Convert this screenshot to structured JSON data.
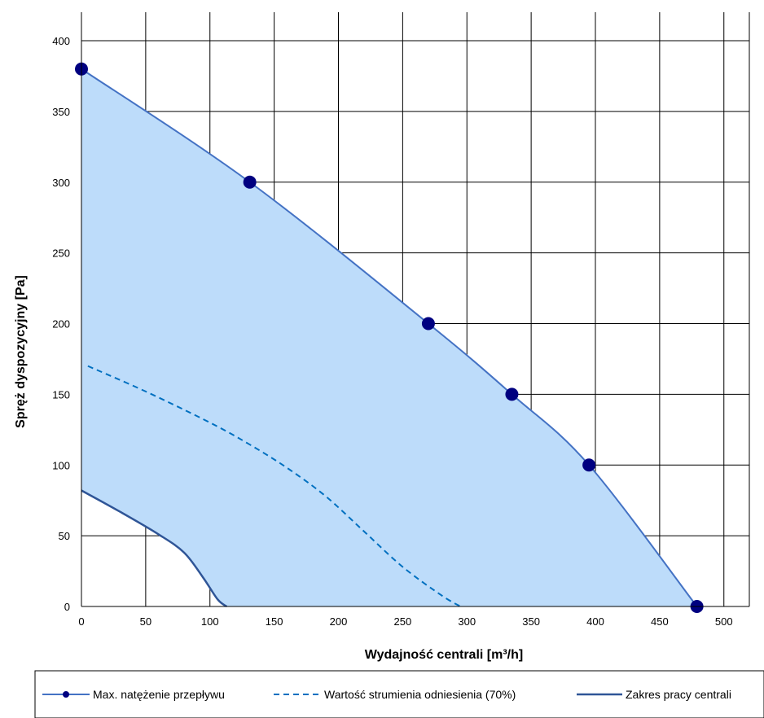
{
  "chart_data": {
    "type": "line",
    "xlabel": "Wydajność centrali [m³/h]",
    "ylabel": "Spręż  dyspozycyjny [Pa]",
    "xlim": [
      0,
      500
    ],
    "ylim": [
      0,
      400
    ],
    "x_ticks": [
      "0",
      "50",
      "100",
      "150",
      "200",
      "250",
      "300",
      "350",
      "400",
      "450",
      "500"
    ],
    "y_ticks": [
      "0",
      "50",
      "100",
      "150",
      "200",
      "250",
      "300",
      "350",
      "400"
    ],
    "grid": true,
    "legend_position": "bottom",
    "series": [
      {
        "name": "Max. natężenie przepływu",
        "style": "solid-markers",
        "color": "#4472c4",
        "marker_color": "#000080",
        "points": [
          [
            0,
            380
          ],
          [
            131,
            300
          ],
          [
            270,
            200
          ],
          [
            335,
            150
          ],
          [
            395,
            100
          ],
          [
            479,
            0
          ]
        ]
      },
      {
        "name": "Wartość strumienia odniesienia (70%)",
        "style": "dashed",
        "color": "#0070c0",
        "points": [
          [
            5,
            170
          ],
          [
            50,
            152
          ],
          [
            100,
            130
          ],
          [
            130,
            115
          ],
          [
            160,
            98
          ],
          [
            190,
            78
          ],
          [
            220,
            53
          ],
          [
            250,
            28
          ],
          [
            280,
            8
          ],
          [
            295,
            0
          ]
        ]
      },
      {
        "name": "Zakres pracy centrali",
        "style": "solid",
        "color": "#2f5597",
        "points": [
          [
            0,
            82
          ],
          [
            30,
            67
          ],
          [
            60,
            51
          ],
          [
            80,
            38
          ],
          [
            95,
            20
          ],
          [
            106,
            5
          ],
          [
            113,
            0
          ]
        ]
      }
    ],
    "fill_color": "#bddcfa"
  }
}
